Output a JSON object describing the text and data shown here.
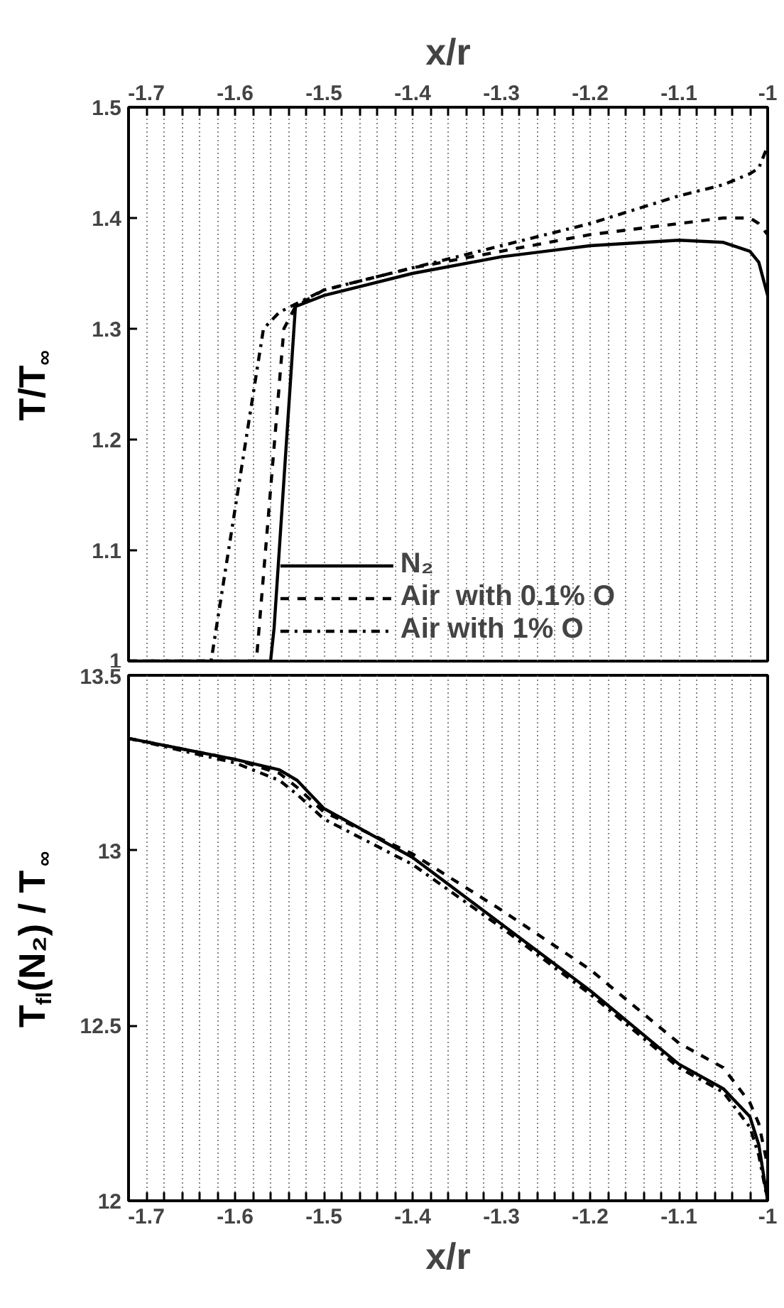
{
  "chart_data": [
    {
      "type": "line",
      "xlabel": "x/r",
      "ylabel": "T/T$_{∞}$",
      "xlim": [
        -1.72,
        -1
      ],
      "ylim": [
        1,
        1.5
      ],
      "xticks": [
        -1.7,
        {
          "value": -1.68,
          "label": null
        },
        {
          "value": -1.66,
          "label": null
        },
        {
          "value": -1.64,
          "label": null
        },
        {
          "value": -1.62,
          "label": null
        },
        -1.6,
        {
          "value": -1.58,
          "label": null
        },
        {
          "value": -1.56,
          "label": null
        },
        {
          "value": -1.54,
          "label": null
        },
        {
          "value": -1.52,
          "label": null
        },
        -1.5,
        {
          "value": -1.48,
          "label": null
        },
        {
          "value": -1.46,
          "label": null
        },
        {
          "value": -1.44,
          "label": null
        },
        {
          "value": -1.42,
          "label": null
        },
        -1.4,
        {
          "value": -1.38,
          "label": null
        },
        {
          "value": -1.36,
          "label": null
        },
        {
          "value": -1.34,
          "label": null
        },
        {
          "value": -1.32,
          "label": null
        },
        -1.3,
        {
          "value": -1.28,
          "label": null
        },
        {
          "value": -1.26,
          "label": null
        },
        {
          "value": -1.24,
          "label": null
        },
        {
          "value": -1.22,
          "label": null
        },
        -1.2,
        {
          "value": -1.18,
          "label": null
        },
        {
          "value": -1.16,
          "label": null
        },
        {
          "value": -1.14,
          "label": null
        },
        {
          "value": -1.12,
          "label": null
        },
        -1.1,
        {
          "value": -1.08,
          "label": null
        },
        {
          "value": -1.06,
          "label": null
        },
        {
          "value": -1.04,
          "label": null
        },
        {
          "value": -1.02,
          "label": null
        },
        -1
      ],
      "yticks": [
        1,
        1.1,
        1.2,
        1.3,
        1.4,
        1.5
      ],
      "grid": "x",
      "legend": "bottom",
      "marker": "none",
      "series": [
        {
          "name": "N₂",
          "color": "#000000",
          "line_style": "solid",
          "x": [
            -1.72,
            -1.56,
            -1.556,
            -1.532,
            -1.5,
            -1.4,
            -1.3,
            -1.2,
            -1.1,
            -1.05,
            -1.02,
            -1.01,
            -1.0
          ],
          "values": [
            1.0,
            1.0,
            1.03,
            1.32,
            1.33,
            1.35,
            1.365,
            1.375,
            1.38,
            1.378,
            1.37,
            1.36,
            1.33
          ]
        },
        {
          "name": "Air  with 0.1% O",
          "color": "#000000",
          "line_style": "dashed",
          "x": [
            -1.72,
            -1.576,
            -1.545,
            -1.532,
            -1.5,
            -1.4,
            -1.3,
            -1.2,
            -1.1,
            -1.05,
            -1.02,
            -1.01,
            -1.0
          ],
          "values": [
            1.0,
            1.0,
            1.3,
            1.32,
            1.335,
            1.355,
            1.37,
            1.385,
            1.395,
            1.4,
            1.4,
            1.395,
            1.385
          ]
        },
        {
          "name": "Air with 1% O",
          "color": "#000000",
          "line_style": "dashdot",
          "x": [
            -1.72,
            -1.627,
            -1.568,
            -1.55,
            -1.5,
            -1.4,
            -1.3,
            -1.2,
            -1.1,
            -1.05,
            -1.02,
            -1.01,
            -1.0
          ],
          "values": [
            1.0,
            1.0,
            1.3,
            1.315,
            1.335,
            1.355,
            1.375,
            1.395,
            1.42,
            1.43,
            1.44,
            1.445,
            1.465
          ]
        }
      ]
    },
    {
      "type": "line",
      "xlabel": "x/r",
      "ylabel": "T$_{fl}$(N₂) / T$_{∞}$",
      "xlim": [
        -1.72,
        -1
      ],
      "ylim": [
        12,
        13.5
      ],
      "xticks": [
        -1.7,
        {
          "value": -1.68,
          "label": null
        },
        {
          "value": -1.66,
          "label": null
        },
        {
          "value": -1.64,
          "label": null
        },
        {
          "value": -1.62,
          "label": null
        },
        -1.6,
        {
          "value": -1.58,
          "label": null
        },
        {
          "value": -1.56,
          "label": null
        },
        {
          "value": -1.54,
          "label": null
        },
        {
          "value": -1.52,
          "label": null
        },
        -1.5,
        {
          "value": -1.48,
          "label": null
        },
        {
          "value": -1.46,
          "label": null
        },
        {
          "value": -1.44,
          "label": null
        },
        {
          "value": -1.42,
          "label": null
        },
        -1.4,
        {
          "value": -1.38,
          "label": null
        },
        {
          "value": -1.36,
          "label": null
        },
        {
          "value": -1.34,
          "label": null
        },
        {
          "value": -1.32,
          "label": null
        },
        -1.3,
        {
          "value": -1.28,
          "label": null
        },
        {
          "value": -1.26,
          "label": null
        },
        {
          "value": -1.24,
          "label": null
        },
        {
          "value": -1.22,
          "label": null
        },
        -1.2,
        {
          "value": -1.18,
          "label": null
        },
        {
          "value": -1.16,
          "label": null
        },
        {
          "value": -1.14,
          "label": null
        },
        {
          "value": -1.12,
          "label": null
        },
        -1.1,
        {
          "value": -1.08,
          "label": null
        },
        {
          "value": -1.06,
          "label": null
        },
        {
          "value": -1.04,
          "label": null
        },
        {
          "value": -1.02,
          "label": null
        },
        -1
      ],
      "yticks": [
        12,
        12.5,
        13,
        13.5
      ],
      "grid": "x",
      "legend": false,
      "marker": "none",
      "series": [
        {
          "color": "#000000",
          "line_style": "solid",
          "x": [
            -1.72,
            -1.6,
            -1.55,
            -1.53,
            -1.5,
            -1.4,
            -1.3,
            -1.2,
            -1.1,
            -1.05,
            -1.02,
            -1.01,
            -1.0
          ],
          "values": [
            13.32,
            13.26,
            13.23,
            13.2,
            13.12,
            12.98,
            12.79,
            12.6,
            12.39,
            12.32,
            12.24,
            12.16,
            12.0
          ]
        },
        {
          "color": "#000000",
          "line_style": "dashed",
          "x": [
            -1.72,
            -1.6,
            -1.55,
            -1.53,
            -1.5,
            -1.4,
            -1.3,
            -1.2,
            -1.1,
            -1.05,
            -1.02,
            -1.01,
            -1.0
          ],
          "values": [
            13.32,
            13.26,
            13.22,
            13.18,
            13.11,
            12.99,
            12.83,
            12.66,
            12.45,
            12.38,
            12.28,
            12.22,
            12.1
          ]
        },
        {
          "color": "#000000",
          "line_style": "dashdot",
          "x": [
            -1.72,
            -1.6,
            -1.55,
            -1.53,
            -1.5,
            -1.4,
            -1.3,
            -1.2,
            -1.1,
            -1.05,
            -1.02,
            -1.01,
            -1.0
          ],
          "values": [
            13.32,
            13.25,
            13.2,
            13.16,
            13.09,
            12.96,
            12.78,
            12.59,
            12.38,
            12.31,
            12.21,
            12.13,
            12.0
          ]
        }
      ]
    }
  ]
}
